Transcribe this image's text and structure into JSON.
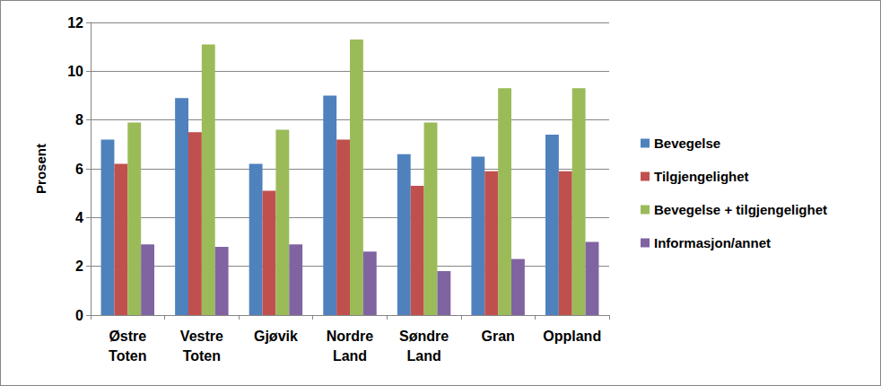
{
  "chart_data": {
    "type": "bar",
    "y_label": "Prosent",
    "categories": [
      "Østre Toten",
      "Vestre Toten",
      "Gjøvik",
      "Nordre Land",
      "Søndre Land",
      "Gran",
      "Oppland"
    ],
    "series": [
      {
        "name": "Bevegelse",
        "color": "#4f81bd",
        "values": [
          7.2,
          8.9,
          6.2,
          9.0,
          6.6,
          6.5,
          7.4
        ]
      },
      {
        "name": "Tilgjengelighet",
        "color": "#c0504d",
        "values": [
          6.2,
          7.5,
          5.1,
          7.2,
          5.3,
          5.9,
          5.9
        ]
      },
      {
        "name": "Bevegelse + tilgjengelighet",
        "color": "#9bbb59",
        "values": [
          7.9,
          11.1,
          7.6,
          11.3,
          7.9,
          9.3,
          9.3
        ]
      },
      {
        "name": "Informasjon/annet",
        "color": "#8064a2",
        "values": [
          2.9,
          2.8,
          2.9,
          2.6,
          1.8,
          2.3,
          3.0
        ]
      }
    ],
    "ylim": [
      0,
      12
    ],
    "yticks": [
      0,
      2,
      4,
      6,
      8,
      10,
      12
    ],
    "grid": true,
    "legend": "right"
  }
}
